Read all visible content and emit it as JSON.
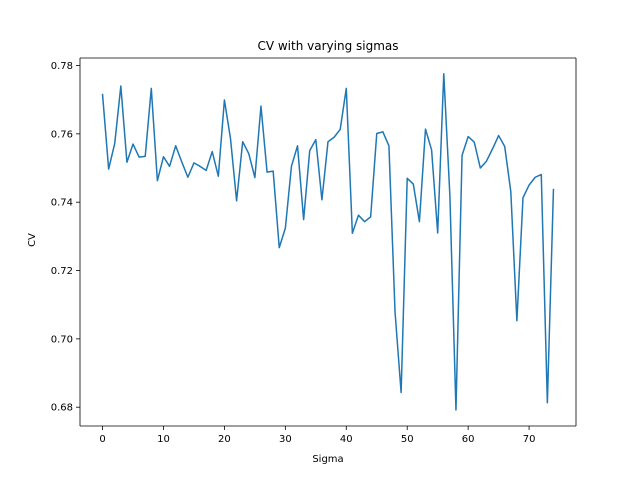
{
  "chart_data": {
    "type": "line",
    "title": "CV with varying sigmas",
    "xlabel": "Sigma",
    "ylabel": "CV",
    "xlim": [
      -3.7,
      77.7
    ],
    "ylim": [
      0.6745,
      0.7822
    ],
    "xticks": [
      0,
      10,
      20,
      30,
      40,
      50,
      60,
      70
    ],
    "yticks": [
      0.68,
      0.7,
      0.72,
      0.74,
      0.76,
      0.78
    ],
    "ytick_labels": [
      "0.68",
      "0.70",
      "0.72",
      "0.74",
      "0.76",
      "0.78"
    ],
    "grid": false,
    "series": [
      {
        "color": "#1f77b4",
        "x": [
          0,
          1,
          2,
          3,
          4,
          5,
          6,
          7,
          8,
          9,
          10,
          11,
          12,
          13,
          14,
          15,
          16,
          17,
          18,
          19,
          20,
          21,
          22,
          23,
          24,
          25,
          26,
          27,
          28,
          29,
          30,
          31,
          32,
          33,
          34,
          35,
          36,
          37,
          38,
          39,
          40,
          41,
          42,
          43,
          44,
          45,
          46,
          47,
          48,
          49,
          50,
          51,
          52,
          53,
          54,
          55,
          56,
          57,
          58,
          59,
          60,
          61,
          62,
          63,
          64,
          65,
          66,
          67,
          68,
          69,
          70,
          71,
          72,
          73,
          74
        ],
        "values": [
          0.7715,
          0.7497,
          0.7572,
          0.774,
          0.7517,
          0.757,
          0.7532,
          0.7534,
          0.7733,
          0.7463,
          0.7533,
          0.7505,
          0.7565,
          0.7518,
          0.7473,
          0.7515,
          0.7505,
          0.7493,
          0.7548,
          0.7476,
          0.7699,
          0.7586,
          0.7404,
          0.7577,
          0.7542,
          0.7472,
          0.7681,
          0.7488,
          0.7491,
          0.7267,
          0.7324,
          0.7505,
          0.7565,
          0.7349,
          0.7551,
          0.7583,
          0.7407,
          0.7577,
          0.759,
          0.7613,
          0.7733,
          0.7309,
          0.7362,
          0.7343,
          0.7357,
          0.7601,
          0.7606,
          0.7565,
          0.7079,
          0.6843,
          0.747,
          0.7453,
          0.7343,
          0.7614,
          0.7553,
          0.731,
          0.7776,
          0.742,
          0.6792,
          0.7537,
          0.7592,
          0.7576,
          0.75,
          0.752,
          0.7556,
          0.7595,
          0.7563,
          0.7431,
          0.7053,
          0.7413,
          0.745,
          0.7473,
          0.7481,
          0.6813,
          0.7437
        ]
      }
    ]
  }
}
